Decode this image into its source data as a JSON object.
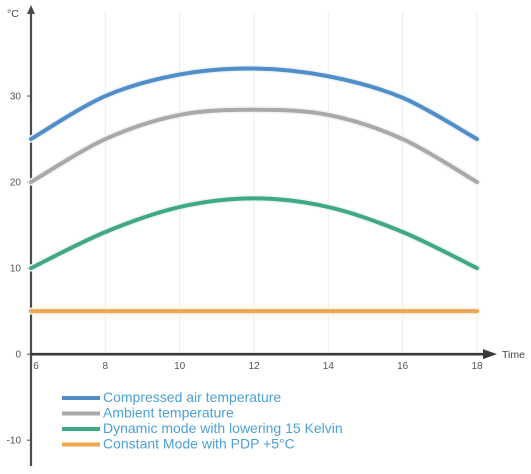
{
  "chart_data": {
    "type": "line",
    "title": "",
    "xlabel": "Time",
    "ylabel": "°C",
    "x_ticks": [
      6,
      8,
      10,
      12,
      14,
      16,
      18
    ],
    "y_ticks": [
      -10,
      0,
      10,
      20,
      30
    ],
    "xlim": [
      6,
      18
    ],
    "ylim": [
      -13,
      40
    ],
    "grid": "vertical",
    "legend_position": "bottom-left",
    "series": [
      {
        "name": "Compressed air temperature",
        "color": "#4f8ec8",
        "x": [
          6,
          8,
          10,
          12,
          14,
          16,
          18
        ],
        "y": [
          25,
          30,
          32.5,
          33.2,
          32.3,
          29.8,
          25
        ]
      },
      {
        "name": "Ambient temperature",
        "color": "#a9a9a9",
        "x": [
          6,
          8,
          10,
          12,
          14,
          16,
          18
        ],
        "y": [
          20,
          25,
          27.8,
          28.4,
          27.8,
          25,
          20
        ]
      },
      {
        "name": "Dynamic mode with lowering 15 Kelvin",
        "color": "#3faa82",
        "x": [
          6,
          8,
          10,
          12,
          14,
          16,
          18
        ],
        "y": [
          10,
          14.2,
          17.1,
          18.1,
          17.1,
          14.2,
          10
        ]
      },
      {
        "name": "Constant Mode with PDP +5°C",
        "color": "#f0a64a",
        "x": [
          6,
          18
        ],
        "y": [
          5,
          5
        ]
      }
    ]
  }
}
